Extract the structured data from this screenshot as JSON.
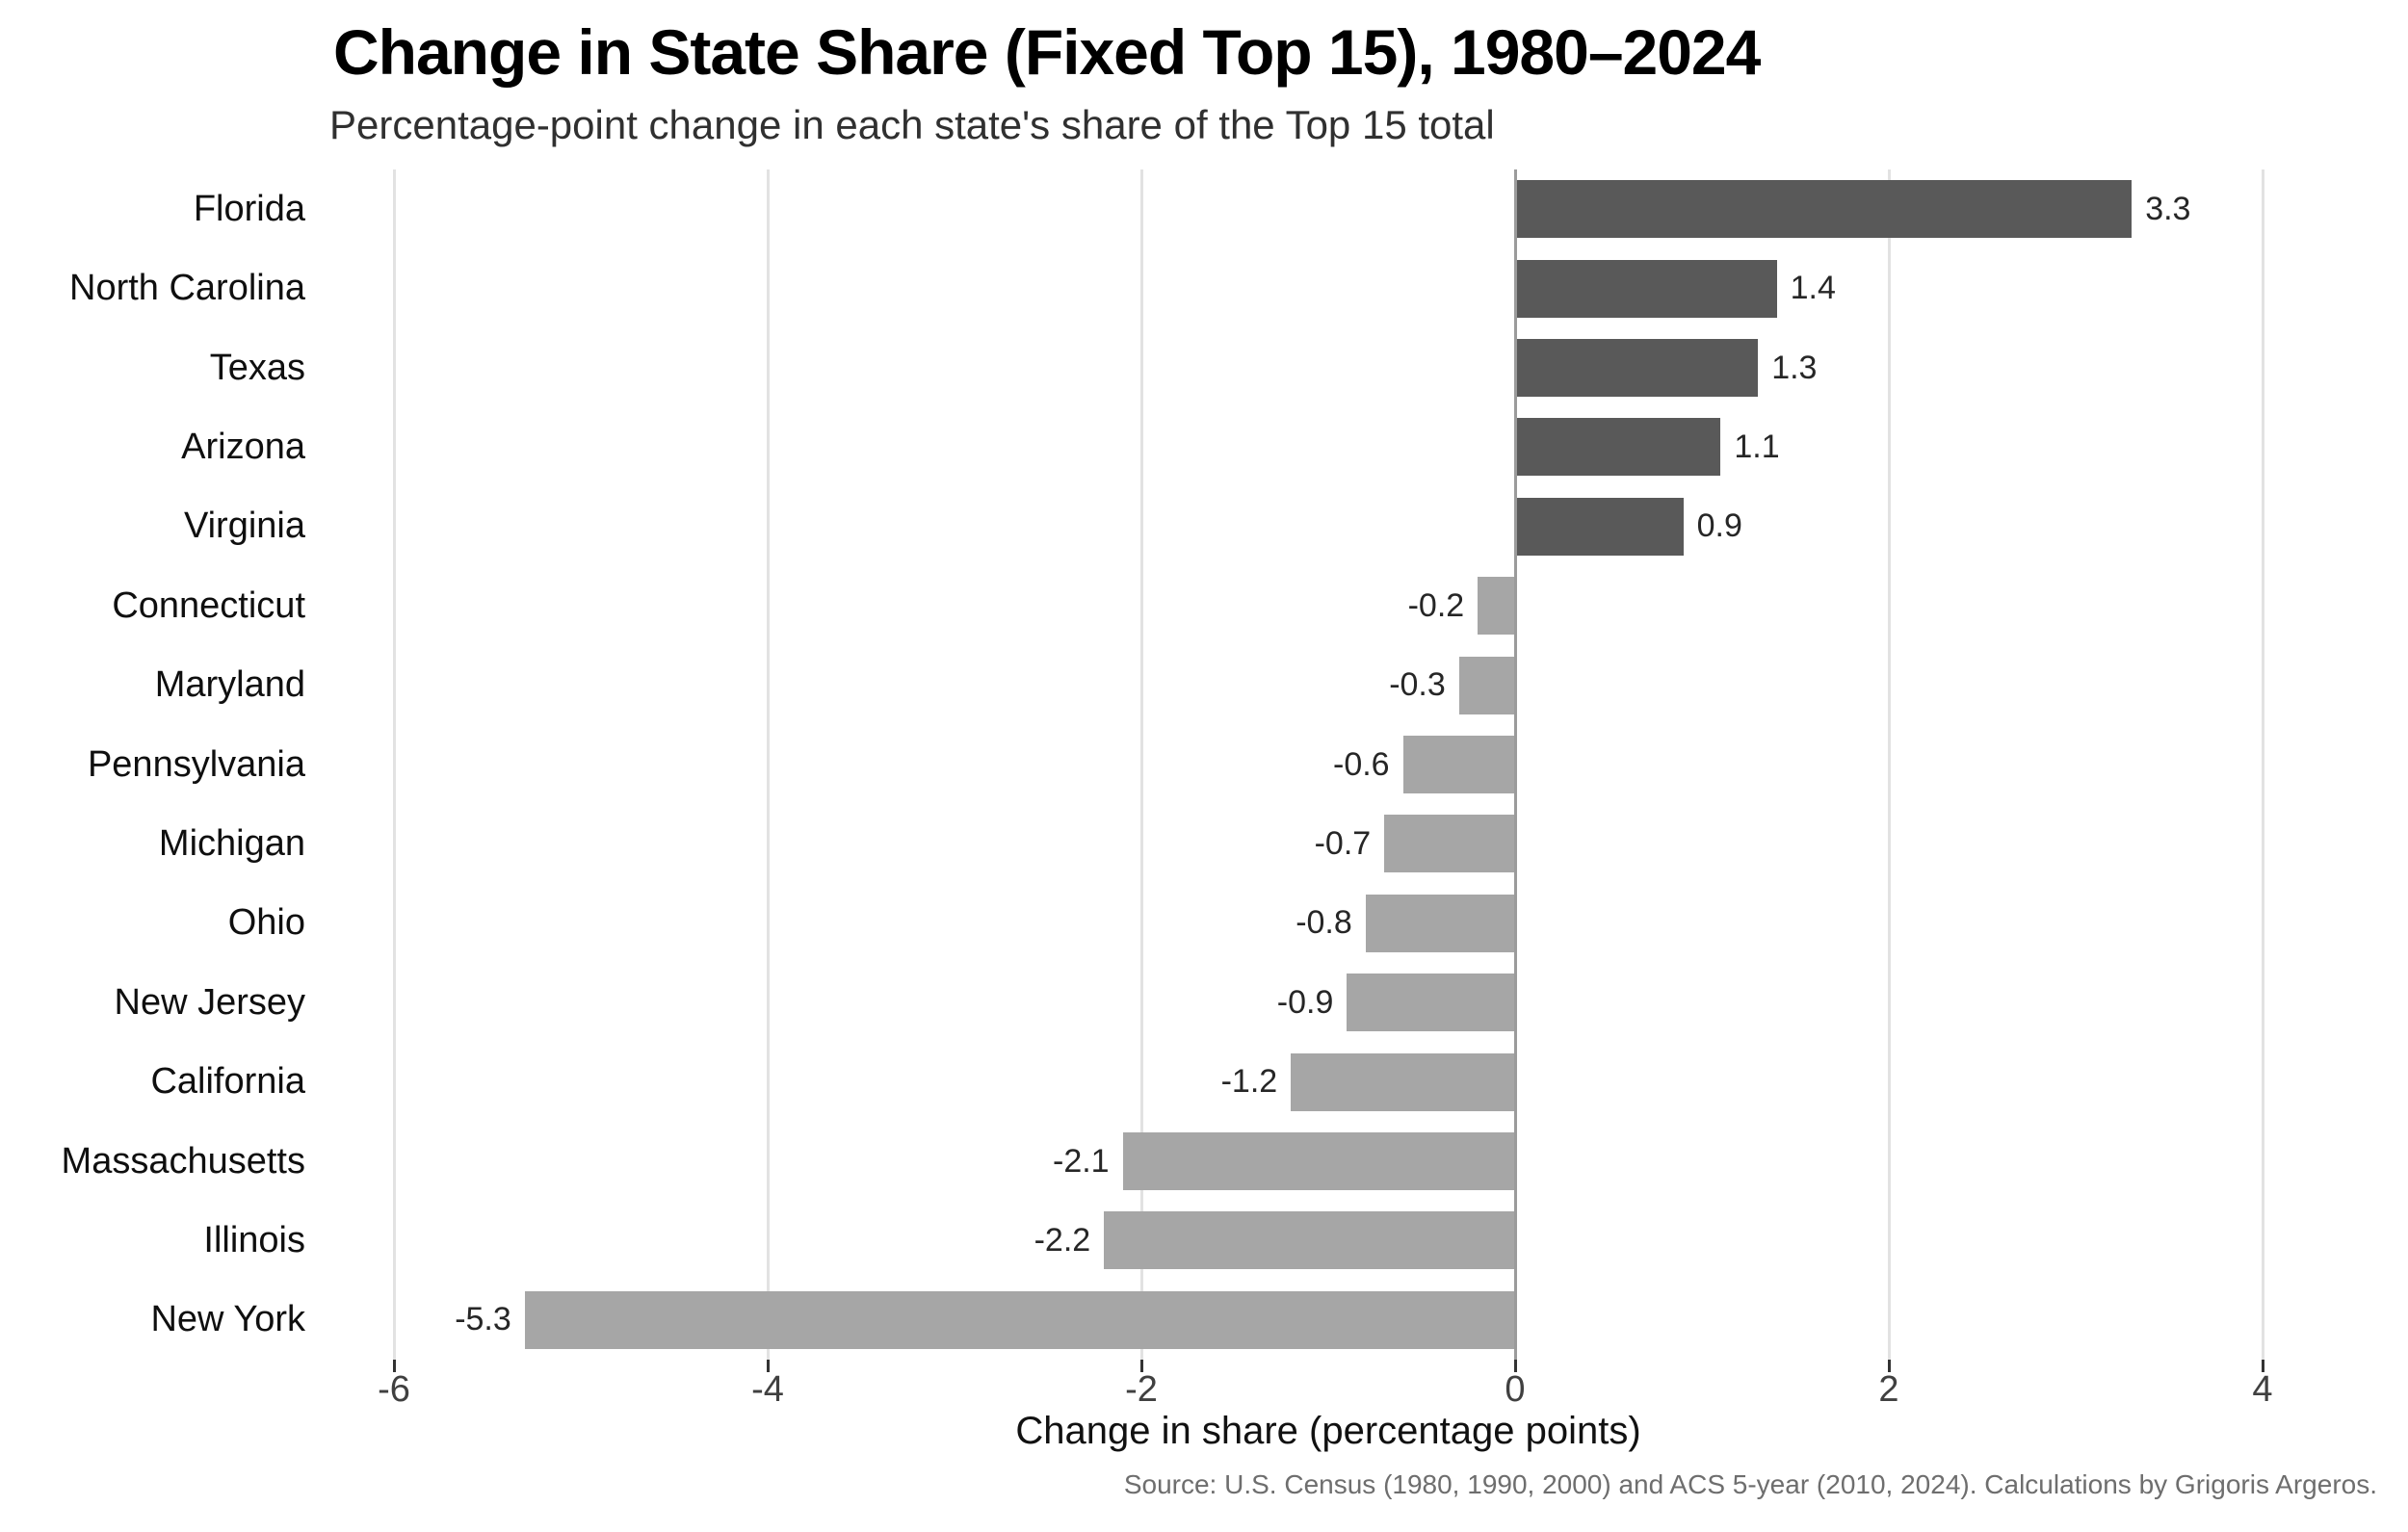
{
  "title": "Change in State Share (Fixed Top 15), 1980–2024",
  "subtitle": "Percentage-point change in each state's share of the Top 15 total",
  "source": "Source: U.S. Census (1980, 1990, 2000) and ACS 5-year (2010, 2024). Calculations by Grigoris Argeros.",
  "chart_data": {
    "type": "bar",
    "orientation": "horizontal",
    "title": "Change in State Share (Fixed Top 15), 1980–2024",
    "subtitle": "Percentage-point change in each state's share of the Top 15 total",
    "xlabel": "Change in share (percentage points)",
    "ylabel": "",
    "categories": [
      "Florida",
      "North Carolina",
      "Texas",
      "Arizona",
      "Virginia",
      "Connecticut",
      "Maryland",
      "Pennsylvania",
      "Michigan",
      "Ohio",
      "New Jersey",
      "California",
      "Massachusetts",
      "Illinois",
      "New York"
    ],
    "values": [
      3.3,
      1.4,
      1.3,
      1.1,
      0.9,
      -0.2,
      -0.3,
      -0.6,
      -0.7,
      -0.8,
      -0.9,
      -1.2,
      -2.1,
      -2.2,
      -5.3
    ],
    "value_labels": [
      "3.3",
      "1.4",
      "1.3",
      "1.1",
      "0.9",
      "-0.2",
      "-0.3",
      "-0.6",
      "-0.7",
      "-0.8",
      "-0.9",
      "-1.2",
      "-2.1",
      "-2.2",
      "-5.3"
    ],
    "x_ticks": [
      -6,
      -4,
      -2,
      0,
      2,
      4
    ],
    "x_tick_labels": [
      "-6",
      "-4",
      "-2",
      "0",
      "2",
      "4"
    ],
    "xlim": [
      -6.8,
      4.8
    ],
    "grid": "vertical-gridlines-only",
    "legend": "none",
    "colors": {
      "positive_bar": "#595959",
      "negative_bar": "#a6a6a6",
      "gridline": "#e2e2e2",
      "zero_line": "#9b9b9b",
      "tick_mark": "#333333",
      "tick_label": "#404040",
      "value_label": "#262626",
      "category_label": "#0f0f0f",
      "source_text": "#6e6e6e",
      "background": "#ffffff"
    }
  }
}
